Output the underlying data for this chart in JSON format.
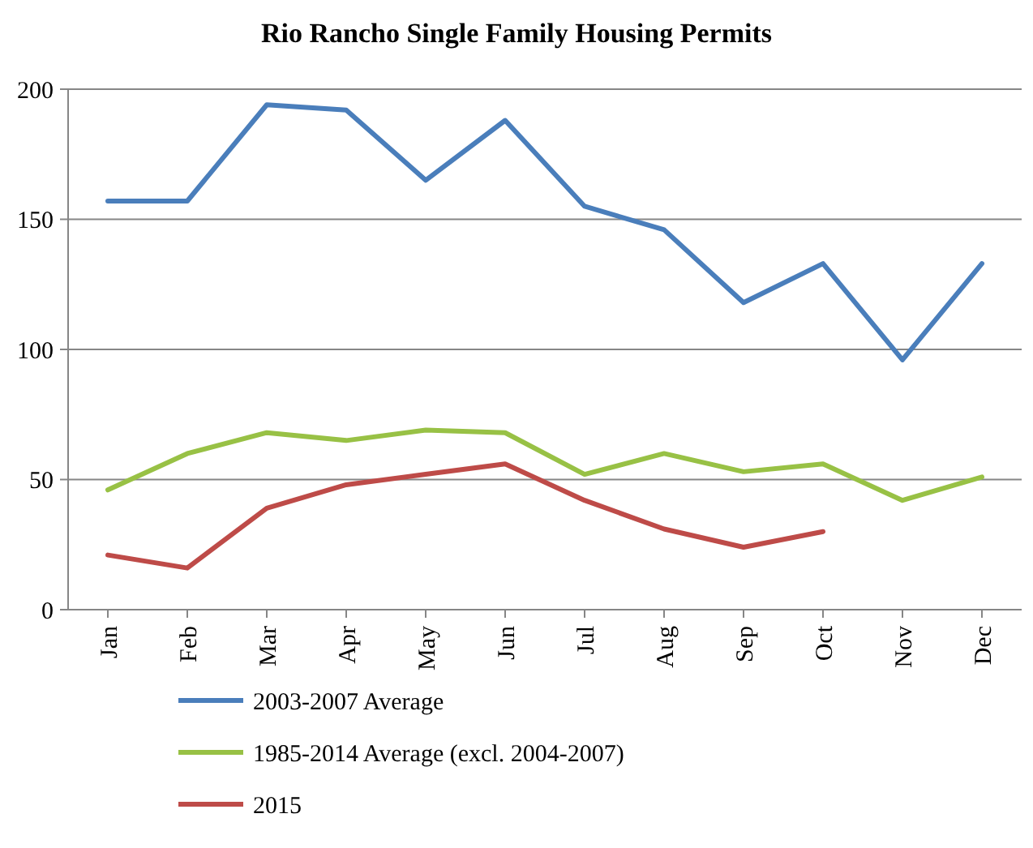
{
  "chart_data": {
    "type": "line",
    "title": "Rio Rancho Single Family Housing Permits",
    "categories": [
      "Jan",
      "Feb",
      "Mar",
      "Apr",
      "May",
      "Jun",
      "Jul",
      "Aug",
      "Sep",
      "Oct",
      "Nov",
      "Dec"
    ],
    "series": [
      {
        "name": "2003-2007 Average",
        "color": "#4a7ebb",
        "values": [
          157,
          157,
          194,
          192,
          165,
          188,
          155,
          146,
          118,
          133,
          96,
          133
        ]
      },
      {
        "name": "1985-2014 Average (excl. 2004-2007)",
        "color": "#98c145",
        "values": [
          46,
          60,
          68,
          65,
          69,
          68,
          52,
          60,
          53,
          56,
          42,
          51
        ]
      },
      {
        "name": "2015",
        "color": "#be4b48",
        "values": [
          21,
          16,
          39,
          48,
          52,
          56,
          42,
          31,
          24,
          30,
          null,
          null
        ]
      }
    ],
    "ylim": [
      0,
      200
    ],
    "yticks": [
      0,
      50,
      100,
      150,
      200
    ],
    "grid": "y",
    "legend": "bottom",
    "marker": "none",
    "line_style": "solid"
  }
}
